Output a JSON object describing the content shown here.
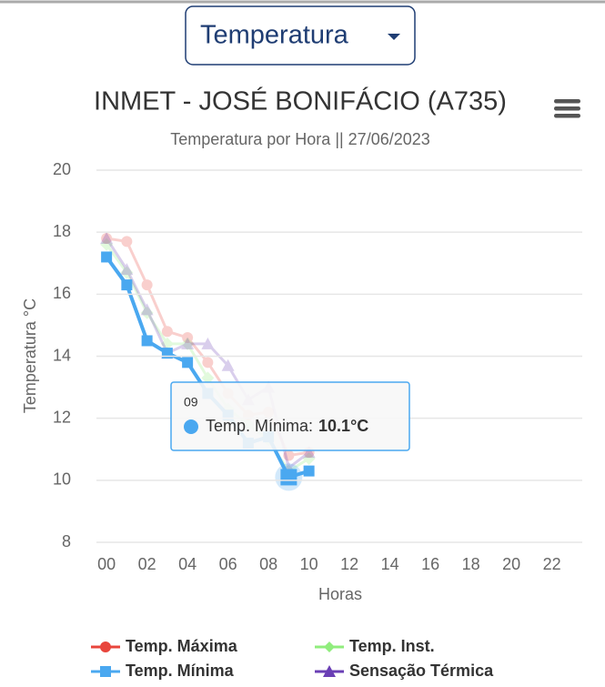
{
  "dropdown": "Temperatura",
  "chart_data": {
    "type": "line",
    "title": "INMET - JOSÉ BONIFÁCIO (A735)",
    "subtitle": "Temperatura por Hora || 27/06/2023",
    "y_axis_label": "Temperatura °C",
    "x_axis_label": "Horas",
    "categories": [
      "00",
      null,
      "02",
      null,
      "04",
      null,
      "06",
      null,
      "08",
      null,
      "10",
      null,
      "12",
      null,
      "14",
      null,
      "16",
      null,
      "18",
      null,
      "20",
      null,
      "22",
      null
    ],
    "ylim": [
      8,
      20
    ],
    "yticks": [
      8,
      10,
      12,
      14,
      16,
      18,
      20
    ],
    "grid": true,
    "series": [
      {
        "name": "Temp. Máxima",
        "color": "#e8453c",
        "marker": "circle",
        "values": [
          17.8,
          17.7,
          16.3,
          14.8,
          14.6,
          13.8,
          12.8,
          12.1,
          12.2,
          10.8,
          10.9,
          null,
          null,
          null,
          null,
          null,
          null,
          null,
          null,
          null,
          null,
          null,
          null,
          null
        ]
      },
      {
        "name": "Temp. Inst.",
        "color": "#90ed7d",
        "marker": "diamond",
        "values": [
          17.6,
          16.7,
          15.4,
          14.4,
          14.4,
          13.3,
          12.3,
          11.8,
          11.3,
          10.3,
          10.7,
          null,
          null,
          null,
          null,
          null,
          null,
          null,
          null,
          null,
          null,
          null,
          null,
          null
        ]
      },
      {
        "name": "Temp. Mínima",
        "color": "#4aa8f0",
        "marker": "square",
        "values": [
          17.2,
          16.3,
          14.5,
          14.1,
          13.8,
          12.8,
          12.1,
          11.2,
          11.4,
          10.1,
          10.3,
          null,
          null,
          null,
          null,
          null,
          null,
          null,
          null,
          null,
          null,
          null,
          null,
          null
        ]
      },
      {
        "name": "Sensação Térmica",
        "color": "#6a3fb5",
        "marker": "triangle",
        "values": [
          17.8,
          16.8,
          15.5,
          14.1,
          14.4,
          14.4,
          13.7,
          12.6,
          13.0,
          10.4,
          10.9,
          null,
          null,
          null,
          null,
          null,
          null,
          null,
          null,
          null,
          null,
          null,
          null,
          null
        ]
      }
    ],
    "tooltip": {
      "header": "09",
      "category_index": 9,
      "series": "Temp. Mínima:",
      "value_label": "10.1°C"
    }
  }
}
